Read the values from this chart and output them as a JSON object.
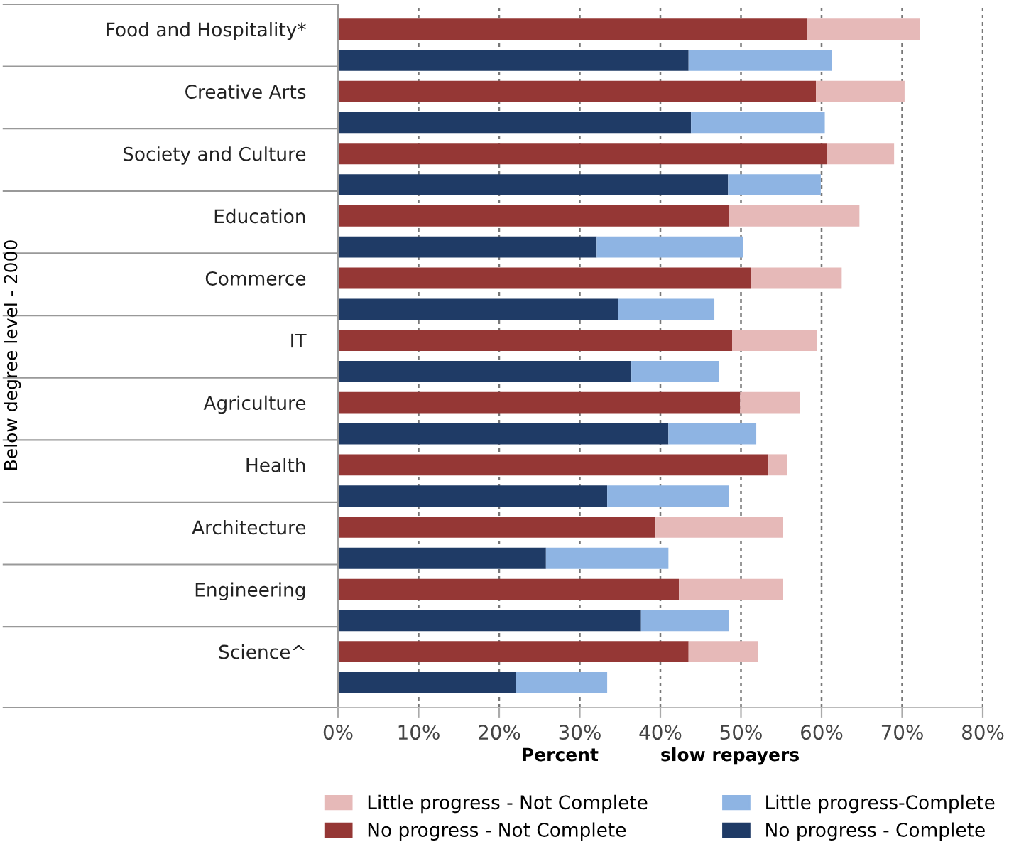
{
  "chart_data": {
    "type": "bar",
    "orientation": "horizontal",
    "stacked": true,
    "categories": [
      "Food and Hospitality*",
      null,
      "Creative Arts",
      null,
      "Society and Culture",
      null,
      "Education",
      null,
      "Commerce",
      null,
      "IT",
      null,
      "Agriculture",
      null,
      "Health",
      null,
      "Architecture",
      null,
      "Engineering",
      null,
      "Science^",
      null
    ],
    "series": [
      {
        "name": "No progress - Not Complete",
        "color": "#953735",
        "values": [
          58.2,
          null,
          59.3,
          null,
          60.7,
          null,
          48.5,
          null,
          51.2,
          null,
          48.9,
          null,
          49.9,
          null,
          53.4,
          null,
          39.4,
          null,
          42.3,
          null,
          43.5,
          null
        ]
      },
      {
        "name": "Little progress - Not Complete",
        "color": "#e6b9b8",
        "values": [
          14.0,
          null,
          11.0,
          null,
          8.3,
          null,
          16.2,
          null,
          11.3,
          null,
          10.5,
          null,
          7.4,
          null,
          2.3,
          null,
          15.8,
          null,
          12.9,
          null,
          8.6,
          null
        ]
      },
      {
        "name": "No progress - Complete",
        "color": "#1f3b66",
        "values": [
          null,
          43.5,
          null,
          43.8,
          null,
          48.4,
          null,
          32.1,
          null,
          34.8,
          null,
          36.4,
          null,
          41.0,
          null,
          33.4,
          null,
          25.8,
          null,
          37.6,
          null,
          22.1
        ]
      },
      {
        "name": "Little progress-Complete",
        "color": "#8eb4e3",
        "values": [
          null,
          17.8,
          null,
          16.6,
          null,
          11.5,
          null,
          18.2,
          null,
          11.9,
          null,
          10.9,
          null,
          10.9,
          null,
          15.1,
          null,
          15.2,
          null,
          10.9,
          null,
          11.3
        ]
      }
    ],
    "xlabel": "Percent          slow repayers",
    "ylabel": "Below degree level - 2000",
    "xlim": [
      0,
      80
    ],
    "xticks": [
      {
        "value": 0,
        "label": "0%"
      },
      {
        "value": 10,
        "label": "10%"
      },
      {
        "value": 20,
        "label": "20%"
      },
      {
        "value": 30,
        "label": "30%"
      },
      {
        "value": 40,
        "label": "40%"
      },
      {
        "value": 50,
        "label": "50%"
      },
      {
        "value": 60,
        "label": "60%"
      },
      {
        "value": 70,
        "label": "70%"
      },
      {
        "value": 80,
        "label": "80%"
      }
    ],
    "grid": "x",
    "legend": "bottom"
  }
}
